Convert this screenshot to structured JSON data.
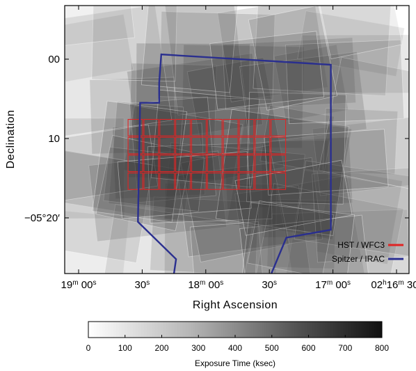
{
  "chart_data": {
    "type": "heatmap",
    "title": "",
    "xlabel": "Right Ascension",
    "ylabel": "Declination",
    "x_axis": {
      "unit": "arcsec of RA relative to 02h16m30s",
      "range": [
        150,
        0
      ],
      "ticks": [
        {
          "value": 150,
          "label": {
            "big": "19",
            "h": "",
            "m": "m",
            "num": "00",
            "s": "s"
          }
        },
        {
          "value": 120,
          "label": {
            "big": "",
            "h": "",
            "m": "",
            "num": "30",
            "s": "s"
          }
        },
        {
          "value": 90,
          "label": {
            "big": "18",
            "h": "",
            "m": "m",
            "num": "00",
            "s": "s"
          }
        },
        {
          "value": 60,
          "label": {
            "big": "",
            "h": "",
            "m": "",
            "num": "30",
            "s": "s"
          }
        },
        {
          "value": 30,
          "label": {
            "big": "17",
            "h": "",
            "m": "m",
            "num": "00",
            "s": "s"
          }
        },
        {
          "value": 0,
          "label": {
            "big": "02",
            "h": "h",
            "m": "m",
            "num": "30",
            "s": "s",
            "mid": "16"
          }
        }
      ]
    },
    "y_axis": {
      "unit": "arcmin of Dec below -05deg00'",
      "range": [
        -6.5,
        27
      ],
      "ticks": [
        {
          "value": 0,
          "label": "00"
        },
        {
          "value": 10,
          "label": "10"
        },
        {
          "value": 20,
          "label": "−05°20′"
        }
      ]
    },
    "colorbar": {
      "label": "Exposure Time (ksec)",
      "range": [
        0,
        800
      ],
      "ticks": [
        0,
        100,
        200,
        300,
        400,
        500,
        600,
        700,
        800
      ],
      "colors": [
        "#ffffff",
        "#111111"
      ]
    },
    "legend": {
      "position": "bottom-right",
      "entries": [
        {
          "name": "HST / WFC3",
          "color": "#e02424"
        },
        {
          "name": "Spitzer / IRAC",
          "color": "#2a2f8f"
        }
      ]
    },
    "series": [
      {
        "name": "Spitzer / IRAC",
        "kind": "outline",
        "color": "#2a2f8f",
        "points": [
          [
            105,
            27
          ],
          [
            104,
            25.2
          ],
          [
            122,
            20.5
          ],
          [
            121,
            5.5
          ],
          [
            112,
            5.5
          ],
          [
            112,
            3
          ],
          [
            111,
            -0.6
          ],
          [
            31,
            0.7
          ],
          [
            31,
            21.5
          ],
          [
            52,
            22.5
          ],
          [
            59,
            27
          ]
        ]
      },
      {
        "name": "HST / WFC3",
        "kind": "grid",
        "color": "#e02424",
        "ra_range": [
          127,
          52
        ],
        "dec_range": [
          7.5,
          16.5
        ],
        "columns": 10,
        "rows": 4
      }
    ]
  }
}
